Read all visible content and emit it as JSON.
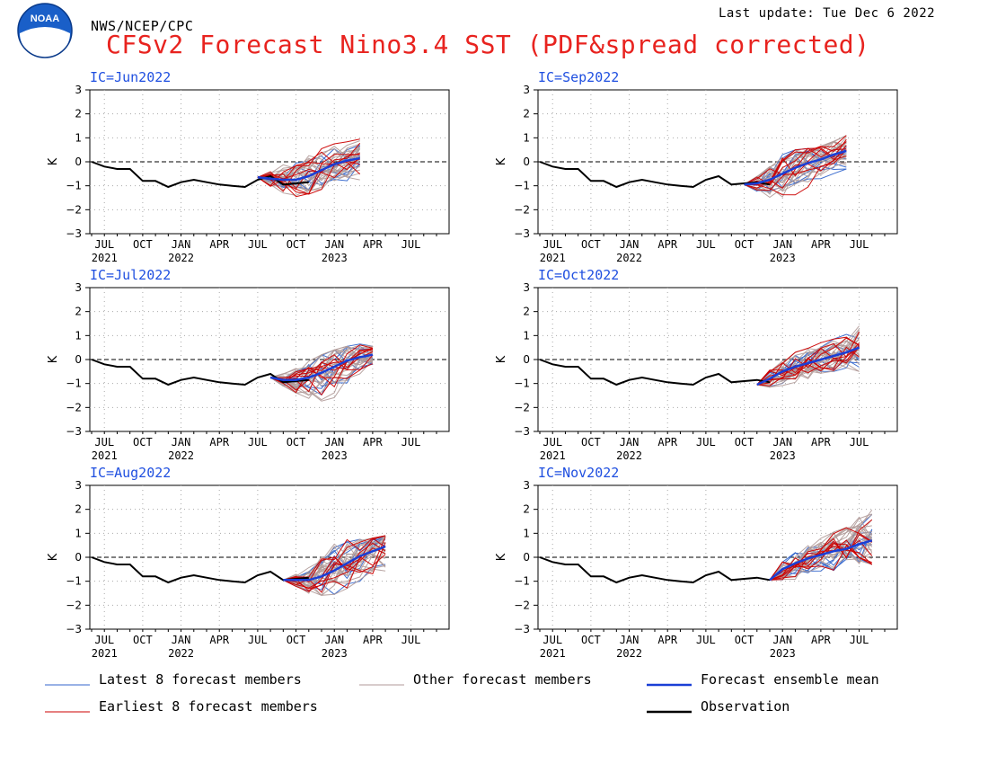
{
  "header": {
    "agency": "NWS/NCEP/CPC",
    "last_update": "Last update: Tue Dec 6 2022",
    "title": "CFSv2 Forecast Nino3.4 SST (PDF&spread corrected)",
    "logo_text": "NOAA"
  },
  "colors": {
    "latest": "#3366cc",
    "earliest": "#cc0000",
    "other": "#b09a98",
    "mean": "#1a3fd6",
    "observation": "#000000",
    "title": "#e8231f",
    "panel_title": "#1f4fe0",
    "grid": "#aaaaaa"
  },
  "legend": [
    {
      "label": "Latest 8 forecast members",
      "key": "latest"
    },
    {
      "label": "Other forecast members",
      "key": "other"
    },
    {
      "label": "Forecast ensemble mean",
      "key": "mean"
    },
    {
      "label": "Earliest 8 forecast members",
      "key": "earliest"
    },
    {
      "label": "Observation",
      "key": "observation"
    }
  ],
  "chart_data": {
    "type": "line",
    "ylabel": "K",
    "ylim": [
      -3,
      3
    ],
    "yticks": [
      3,
      2,
      1,
      0,
      -1,
      -2,
      -3
    ],
    "x_months": [
      "2021-06",
      "2021-07",
      "2021-08",
      "2021-09",
      "2021-10",
      "2021-11",
      "2021-12",
      "2022-01",
      "2022-02",
      "2022-03",
      "2022-04",
      "2022-05",
      "2022-06",
      "2022-07",
      "2022-08",
      "2022-09",
      "2022-10",
      "2022-11",
      "2022-12",
      "2023-01",
      "2023-02",
      "2023-03",
      "2023-04",
      "2023-05",
      "2023-06",
      "2023-07",
      "2023-08",
      "2023-09"
    ],
    "month_ticks": [
      {
        "month": "2021-07",
        "label": "JUL",
        "year": "2021"
      },
      {
        "month": "2021-10",
        "label": "OCT",
        "year": ""
      },
      {
        "month": "2022-01",
        "label": "JAN",
        "year": "2022"
      },
      {
        "month": "2022-04",
        "label": "APR",
        "year": ""
      },
      {
        "month": "2022-07",
        "label": "JUL",
        "year": ""
      },
      {
        "month": "2022-10",
        "label": "OCT",
        "year": ""
      },
      {
        "month": "2023-01",
        "label": "JAN",
        "year": "2023"
      },
      {
        "month": "2023-04",
        "label": "APR",
        "year": ""
      },
      {
        "month": "2023-07",
        "label": "JUL",
        "year": ""
      }
    ],
    "observation": [
      [
        "2021-06",
        0.0
      ],
      [
        "2021-07",
        -0.2
      ],
      [
        "2021-08",
        -0.3
      ],
      [
        "2021-09",
        -0.3
      ],
      [
        "2021-10",
        -0.8
      ],
      [
        "2021-11",
        -0.8
      ],
      [
        "2021-12",
        -1.05
      ],
      [
        "2022-01",
        -0.85
      ],
      [
        "2022-02",
        -0.75
      ],
      [
        "2022-03",
        -0.85
      ],
      [
        "2022-04",
        -0.95
      ],
      [
        "2022-05",
        -1.0
      ],
      [
        "2022-06",
        -1.05
      ],
      [
        "2022-07",
        -0.75
      ],
      [
        "2022-08",
        -0.6
      ],
      [
        "2022-09",
        -0.95
      ],
      [
        "2022-10",
        -0.9
      ],
      [
        "2022-11",
        -0.85
      ],
      [
        "2022-12",
        -0.95
      ]
    ],
    "panels": [
      {
        "ic": "IC=Jun2022",
        "obs_end": "2022-11",
        "start": "2022-07",
        "start_value": -0.65,
        "mean": [
          [
            "2022-07",
            -0.65
          ],
          [
            "2022-08",
            -0.7
          ],
          [
            "2022-09",
            -0.75
          ],
          [
            "2022-10",
            -0.75
          ],
          [
            "2022-11",
            -0.6
          ],
          [
            "2022-12",
            -0.35
          ],
          [
            "2023-01",
            -0.1
          ],
          [
            "2023-02",
            0.05
          ],
          [
            "2023-03",
            0.15
          ]
        ],
        "band_low": [
          -0.7,
          -1.1,
          -1.3,
          -1.55,
          -1.35,
          -1.15,
          -0.9,
          -0.8,
          -0.8
        ],
        "band_high": [
          -0.6,
          -0.25,
          -0.05,
          0.1,
          0.35,
          0.55,
          0.75,
          0.85,
          0.95
        ]
      },
      {
        "ic": "IC=Sep2022",
        "obs_end": "2022-12",
        "start": "2022-10",
        "start_value": -0.95,
        "mean": [
          [
            "2022-10",
            -0.95
          ],
          [
            "2022-11",
            -0.9
          ],
          [
            "2022-12",
            -0.75
          ],
          [
            "2023-01",
            -0.5
          ],
          [
            "2023-02",
            -0.25
          ],
          [
            "2023-03",
            -0.05
          ],
          [
            "2023-04",
            0.1
          ],
          [
            "2023-05",
            0.3
          ],
          [
            "2023-06",
            0.45
          ]
        ],
        "band_low": [
          -1.0,
          -1.35,
          -1.65,
          -1.7,
          -1.4,
          -1.05,
          -0.7,
          -0.5,
          -0.3
        ],
        "band_high": [
          -0.9,
          -0.55,
          -0.1,
          0.3,
          0.5,
          0.55,
          0.65,
          0.85,
          1.1
        ]
      },
      {
        "ic": "IC=Jul2022",
        "obs_end": "2022-11",
        "start": "2022-08",
        "start_value": -0.75,
        "mean": [
          [
            "2022-08",
            -0.75
          ],
          [
            "2022-09",
            -0.85
          ],
          [
            "2022-10",
            -0.85
          ],
          [
            "2022-11",
            -0.75
          ],
          [
            "2022-12",
            -0.55
          ],
          [
            "2023-01",
            -0.3
          ],
          [
            "2023-02",
            -0.05
          ],
          [
            "2023-03",
            0.1
          ],
          [
            "2023-04",
            0.2
          ]
        ],
        "band_low": [
          -0.8,
          -1.1,
          -1.4,
          -1.7,
          -2.0,
          -1.6,
          -1.0,
          -0.6,
          -0.3
        ],
        "band_high": [
          -0.7,
          -0.45,
          -0.3,
          0.0,
          0.2,
          0.4,
          0.55,
          0.65,
          0.55
        ]
      },
      {
        "ic": "IC=Oct2022",
        "obs_end": "2022-12",
        "start": "2022-11",
        "start_value": -1.05,
        "mean": [
          [
            "2022-11",
            -1.05
          ],
          [
            "2022-12",
            -0.8
          ],
          [
            "2023-01",
            -0.5
          ],
          [
            "2023-02",
            -0.3
          ],
          [
            "2023-03",
            -0.15
          ],
          [
            "2023-04",
            0.0
          ],
          [
            "2023-05",
            0.15
          ],
          [
            "2023-06",
            0.3
          ],
          [
            "2023-07",
            0.5
          ]
        ],
        "band_low": [
          -1.1,
          -1.25,
          -1.1,
          -0.95,
          -0.8,
          -0.6,
          -0.5,
          -0.35,
          -0.5
        ],
        "band_high": [
          -1.0,
          -0.35,
          0.0,
          0.3,
          0.55,
          0.7,
          0.85,
          1.05,
          1.45
        ]
      },
      {
        "ic": "IC=Aug2022",
        "obs_end": "2022-11",
        "start": "2022-09",
        "start_value": -0.95,
        "mean": [
          [
            "2022-09",
            -0.95
          ],
          [
            "2022-10",
            -0.95
          ],
          [
            "2022-11",
            -0.95
          ],
          [
            "2022-12",
            -0.8
          ],
          [
            "2023-01",
            -0.55
          ],
          [
            "2023-02",
            -0.25
          ],
          [
            "2023-03",
            0.05
          ],
          [
            "2023-04",
            0.25
          ],
          [
            "2023-05",
            0.45
          ]
        ],
        "band_low": [
          -1.0,
          -1.25,
          -1.5,
          -1.75,
          -1.55,
          -1.3,
          -1.0,
          -0.7,
          -1.15
        ],
        "band_high": [
          -0.9,
          -0.6,
          -0.35,
          0.1,
          0.55,
          0.8,
          0.75,
          0.8,
          0.9
        ]
      },
      {
        "ic": "IC=Nov2022",
        "obs_end": "2022-12",
        "start": "2022-12",
        "start_value": -0.95,
        "mean": [
          [
            "2022-12",
            -0.95
          ],
          [
            "2023-01",
            -0.5
          ],
          [
            "2023-02",
            -0.25
          ],
          [
            "2023-03",
            -0.05
          ],
          [
            "2023-04",
            0.1
          ],
          [
            "2023-05",
            0.25
          ],
          [
            "2023-06",
            0.35
          ],
          [
            "2023-07",
            0.55
          ],
          [
            "2023-08",
            0.7
          ]
        ],
        "band_low": [
          -1.0,
          -1.3,
          -0.95,
          -0.75,
          -0.6,
          -0.55,
          -0.45,
          -0.35,
          -0.3
        ],
        "band_high": [
          -0.9,
          -0.2,
          0.2,
          0.55,
          0.8,
          1.05,
          1.3,
          1.7,
          2.1
        ]
      }
    ]
  }
}
